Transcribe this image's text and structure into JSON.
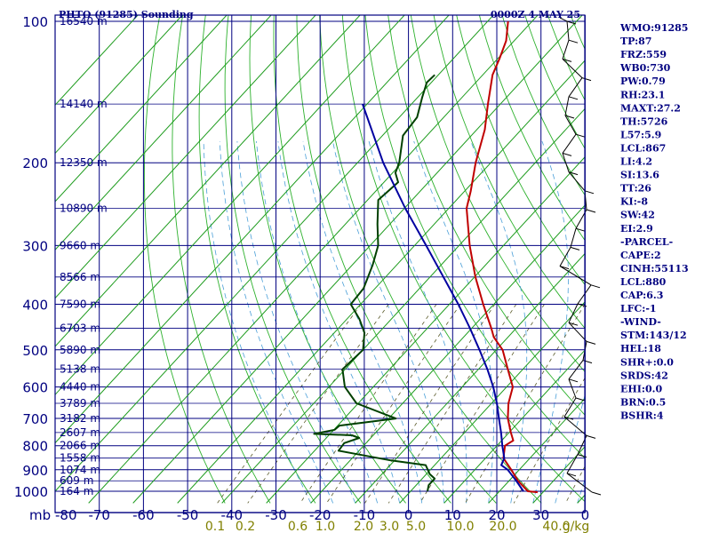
{
  "header": {
    "title": "PHTO (91285) Sounding",
    "datetime": "0000Z  4 MAY 25"
  },
  "indices": [
    "WMO:91285",
    "TP:87",
    "FRZ:559",
    "WB0:730",
    "PW:0.79",
    "RH:23.1",
    "MAXT:27.2",
    "TH:5726",
    "L57:5.9",
    "LCL:867",
    "LI:4.2",
    "SI:13.6",
    "TT:26",
    "KI:-8",
    "SW:42",
    "EI:2.9",
    "-PARCEL-",
    "CAPE:2",
    "CINH:55113",
    "LCL:880",
    "CAP:6.3",
    "LFC:-1",
    "-WIND-",
    "STM:143/12",
    "HEL:18",
    "SHR+:0.0",
    "SRDS:42",
    "EHI:0.0",
    "BRN:0.5",
    "BSHR:4"
  ],
  "chart_data": {
    "type": "line",
    "chart_kind": "skew-T log-p sounding",
    "x_unit_label": "mb",
    "temperature_ticks": [
      "-80",
      "-70",
      "-60",
      "-50",
      "-40",
      "-30",
      "-20",
      "-10",
      "0",
      "10",
      "20",
      "30",
      "0"
    ],
    "pressure_ticks": [
      "100",
      "200",
      "300",
      "400",
      "500",
      "600",
      "700",
      "800",
      "900",
      "1000"
    ],
    "pressure_levels": [
      100,
      200,
      300,
      400,
      500,
      600,
      700,
      800,
      900,
      1000
    ],
    "height_labels": [
      {
        "p": 100,
        "label": "16540 m"
      },
      {
        "p": 150,
        "label": "14140 m"
      },
      {
        "p": 200,
        "label": "12350 m"
      },
      {
        "p": 250,
        "label": "10890 m"
      },
      {
        "p": 300,
        "label": "9660 m"
      },
      {
        "p": 350,
        "label": "8566 m"
      },
      {
        "p": 400,
        "label": "7590 m"
      },
      {
        "p": 450,
        "label": "6703 m"
      },
      {
        "p": 500,
        "label": "5890 m"
      },
      {
        "p": 550,
        "label": "5138 m"
      },
      {
        "p": 600,
        "label": "4440 m"
      },
      {
        "p": 650,
        "label": "3789 m"
      },
      {
        "p": 700,
        "label": "3182 m"
      },
      {
        "p": 750,
        "label": "2607 m"
      },
      {
        "p": 800,
        "label": "2066 m"
      },
      {
        "p": 850,
        "label": "1558 m"
      },
      {
        "p": 900,
        "label": "1074 m"
      },
      {
        "p": 950,
        "label": "609 m"
      },
      {
        "p": 1000,
        "label": "164 m"
      }
    ],
    "mixing_ratio_labels": [
      "0.1",
      "0.2",
      "0.6",
      "1.0",
      "2.0",
      "3.0",
      "5.0",
      "10.0",
      "20.0",
      "40.0",
      "g/kg"
    ],
    "x_range": [
      -80,
      40
    ],
    "y_range": [
      100,
      1000
    ],
    "grid": true,
    "series": [
      {
        "role": "temperature",
        "color": "#c00000",
        "points": [
          [
            1005,
            28.8
          ],
          [
            1000,
            26.4
          ],
          [
            950,
            22.0
          ],
          [
            900,
            18.2
          ],
          [
            850,
            14.0
          ],
          [
            800,
            11.8
          ],
          [
            780,
            12.6
          ],
          [
            750,
            10.4
          ],
          [
            700,
            6.8
          ],
          [
            650,
            3.8
          ],
          [
            600,
            1.4
          ],
          [
            550,
            -3.4
          ],
          [
            500,
            -8.6
          ],
          [
            470,
            -13.2
          ],
          [
            450,
            -15.6
          ],
          [
            400,
            -22.4
          ],
          [
            350,
            -29.8
          ],
          [
            300,
            -37.6
          ],
          [
            250,
            -46.0
          ],
          [
            230,
            -48.6
          ],
          [
            200,
            -53.4
          ],
          [
            170,
            -58.2
          ],
          [
            150,
            -62.8
          ],
          [
            130,
            -67.8
          ],
          [
            120,
            -69.6
          ],
          [
            110,
            -71.8
          ],
          [
            100,
            -75.4
          ]
        ]
      },
      {
        "role": "dewpoint",
        "color": "#004000",
        "points": [
          [
            1000,
            3.8
          ],
          [
            970,
            2.8
          ],
          [
            940,
            2.8
          ],
          [
            920,
            0.8
          ],
          [
            880,
            -2.0
          ],
          [
            860,
            -10.8
          ],
          [
            820,
            -24.6
          ],
          [
            790,
            -24.9
          ],
          [
            770,
            -22.6
          ],
          [
            760,
            -24.8
          ],
          [
            755,
            -33.6
          ],
          [
            740,
            -29.8
          ],
          [
            725,
            -29.6
          ],
          [
            700,
            -18.4
          ],
          [
            650,
            -30.4
          ],
          [
            600,
            -36.4
          ],
          [
            550,
            -40.6
          ],
          [
            500,
            -40.0
          ],
          [
            460,
            -43.2
          ],
          [
            430,
            -47.2
          ],
          [
            400,
            -52.2
          ],
          [
            370,
            -52.6
          ],
          [
            330,
            -55.4
          ],
          [
            300,
            -58.2
          ],
          [
            270,
            -62.8
          ],
          [
            240,
            -67.6
          ],
          [
            220,
            -66.8
          ],
          [
            210,
            -69.4
          ],
          [
            200,
            -70.6
          ],
          [
            175,
            -75.4
          ],
          [
            160,
            -76.0
          ],
          [
            145,
            -79.0
          ],
          [
            135,
            -81.0
          ],
          [
            130,
            -80.8
          ]
        ]
      },
      {
        "role": "parcel",
        "color": "#0000a0",
        "points": [
          [
            1000,
            25.4
          ],
          [
            950,
            21.6
          ],
          [
            900,
            17.4
          ],
          [
            880,
            15.0
          ],
          [
            850,
            14.2
          ],
          [
            800,
            11.2
          ],
          [
            750,
            8.2
          ],
          [
            700,
            4.8
          ],
          [
            650,
            1.2
          ],
          [
            600,
            -3.0
          ],
          [
            550,
            -8.0
          ],
          [
            500,
            -13.8
          ],
          [
            450,
            -20.4
          ],
          [
            400,
            -28.0
          ],
          [
            350,
            -37.0
          ],
          [
            300,
            -47.4
          ],
          [
            250,
            -59.8
          ],
          [
            200,
            -74.2
          ],
          [
            150,
            -91.0
          ]
        ]
      }
    ]
  }
}
